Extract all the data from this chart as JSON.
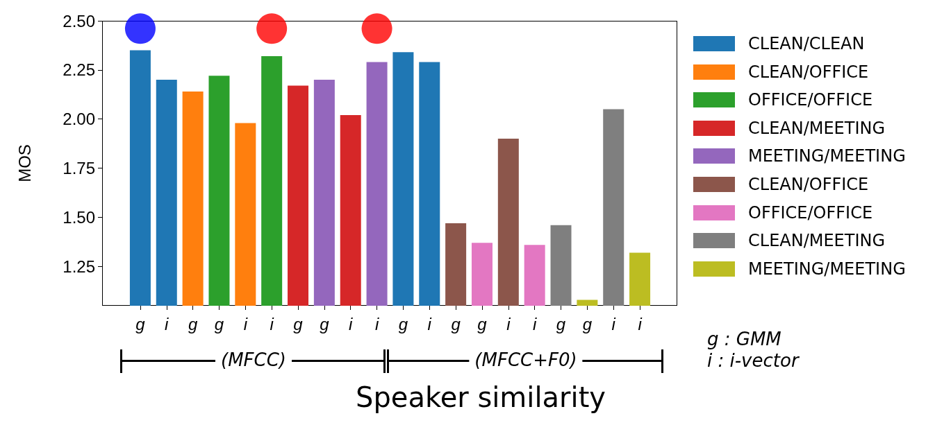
{
  "chart_data": {
    "type": "bar",
    "ylabel": "MOS",
    "xlabel": "Speaker similarity",
    "categories": [
      "g",
      "i",
      "g",
      "g",
      "i",
      "i",
      "g",
      "g",
      "i",
      "i",
      "g",
      "i",
      "g",
      "g",
      "i",
      "i",
      "g",
      "g",
      "i",
      "i"
    ],
    "ylim": [
      1.05,
      2.5
    ],
    "yticks": [
      {
        "value": 1.25,
        "label": "1.25"
      },
      {
        "value": 1.5,
        "label": "1.50"
      },
      {
        "value": 1.75,
        "label": "1.75"
      },
      {
        "value": 2.0,
        "label": "2.00"
      },
      {
        "value": 2.25,
        "label": "2.25"
      },
      {
        "value": 2.5,
        "label": "2.50"
      }
    ],
    "series": [
      {
        "name": "CLEAN/CLEAN",
        "color": "#1f77b4",
        "values": [
          2.35,
          2.2,
          null,
          null,
          null,
          null,
          null,
          null,
          null,
          null,
          2.34,
          2.29,
          null,
          null,
          null,
          null,
          null,
          null,
          null,
          null
        ]
      },
      {
        "name": "CLEAN/OFFICE",
        "color": "#ff7f0e",
        "values": [
          null,
          null,
          2.14,
          null,
          1.98,
          null,
          null,
          null,
          null,
          null,
          null,
          null,
          null,
          null,
          null,
          null,
          null,
          null,
          null,
          null
        ]
      },
      {
        "name": "OFFICE/OFFICE",
        "color": "#2ca02c",
        "values": [
          null,
          null,
          null,
          2.22,
          null,
          2.32,
          null,
          null,
          null,
          null,
          null,
          null,
          null,
          null,
          null,
          null,
          null,
          null,
          null,
          null
        ]
      },
      {
        "name": "CLEAN/MEETING",
        "color": "#d62728",
        "values": [
          null,
          null,
          null,
          null,
          null,
          null,
          2.17,
          null,
          2.02,
          null,
          null,
          null,
          null,
          null,
          null,
          null,
          null,
          null,
          null,
          null
        ]
      },
      {
        "name": "MEETING/MEETING",
        "color": "#9467bd",
        "values": [
          null,
          null,
          null,
          null,
          null,
          null,
          null,
          2.2,
          null,
          2.29,
          null,
          null,
          null,
          null,
          null,
          null,
          null,
          null,
          null,
          null
        ]
      },
      {
        "name": "CLEAN/OFFICE",
        "color": "#8c564b",
        "values": [
          null,
          null,
          null,
          null,
          null,
          null,
          null,
          null,
          null,
          null,
          null,
          null,
          1.47,
          null,
          1.9,
          null,
          null,
          null,
          null,
          null
        ]
      },
      {
        "name": "OFFICE/OFFICE",
        "color": "#e377c2",
        "values": [
          null,
          null,
          null,
          null,
          null,
          null,
          null,
          null,
          null,
          null,
          null,
          null,
          null,
          1.37,
          null,
          1.36,
          null,
          null,
          null,
          null
        ]
      },
      {
        "name": "CLEAN/MEETING",
        "color": "#7f7f7f",
        "values": [
          null,
          null,
          null,
          null,
          null,
          null,
          null,
          null,
          null,
          null,
          null,
          null,
          null,
          null,
          null,
          null,
          1.46,
          null,
          2.05,
          null
        ]
      },
      {
        "name": "MEETING/MEETING",
        "color": "#bcbd22",
        "values": [
          null,
          null,
          null,
          null,
          null,
          null,
          null,
          null,
          null,
          null,
          null,
          null,
          null,
          null,
          null,
          null,
          null,
          1.08,
          null,
          1.32
        ]
      },
      {
        "type": "scatter",
        "marker": "circle",
        "colors": [
          "#0000ff",
          null,
          null,
          null,
          null,
          "#ff0000",
          null,
          null,
          null,
          "#ff0000",
          null,
          null,
          null,
          null,
          null,
          null,
          null,
          null,
          null,
          null
        ],
        "values": [
          2.46,
          null,
          null,
          null,
          null,
          2.46,
          null,
          null,
          null,
          2.46,
          null,
          null,
          null,
          null,
          null,
          null,
          null,
          null,
          null,
          null
        ]
      }
    ],
    "annotations": [
      "(MFCC)",
      "(MFCC+F0)",
      "g : GMM",
      "i : i-vector"
    ],
    "legend": "right",
    "grid": false
  }
}
